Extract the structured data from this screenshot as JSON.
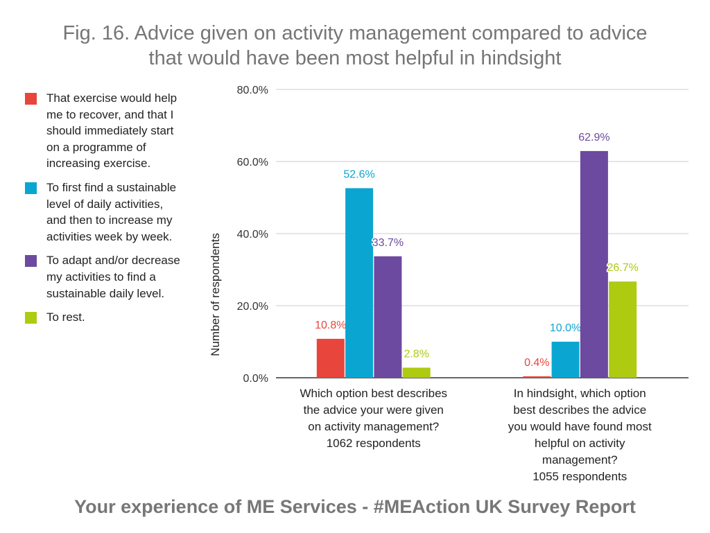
{
  "title": {
    "line1": "Fig. 16. Advice given on activity management compared to advice",
    "line2": "that would have been most helpful in hindsight"
  },
  "legend": [
    {
      "label": "That exercise would help me to recover, and that I should immediately start on a programme of increasing exercise.",
      "color": "#e8453c"
    },
    {
      "label": "To first find a sustainable level of daily activities, and then to increase my activities week by week.",
      "color": "#0aa6d1"
    },
    {
      "label": "To adapt and/or decrease my activities to find a sustainable daily level.",
      "color": "#6c4a9f"
    },
    {
      "label": "To rest.",
      "color": "#aecb12"
    }
  ],
  "chart_data": {
    "type": "bar",
    "categories": [
      [
        "Which option best describes",
        "the advice your were given",
        "on activity management?",
        "1062 respondents"
      ],
      [
        "In hindsight, which option",
        "best describes the advice",
        "you would have found most",
        "helpful on activity",
        "management?",
        "1055 respondents"
      ]
    ],
    "series": [
      {
        "name": "That exercise would help me to recover, and that I should immediately start on a programme of increasing exercise.",
        "color": "#e8453c",
        "values": [
          10.8,
          0.4
        ],
        "labels": [
          "10.8%",
          "0.4%"
        ]
      },
      {
        "name": "To first find a sustainable level of daily activities, and then to increase my activities week by week.",
        "color": "#0aa6d1",
        "values": [
          52.6,
          10.0
        ],
        "labels": [
          "52.6%",
          "10.0%"
        ]
      },
      {
        "name": "To adapt and/or decrease my activities to find a sustainable daily level.",
        "color": "#6c4a9f",
        "values": [
          33.7,
          62.9
        ],
        "labels": [
          "33.7%",
          "62.9%"
        ]
      },
      {
        "name": "To rest.",
        "color": "#aecb12",
        "values": [
          2.8,
          26.7
        ],
        "labels": [
          "2.8%",
          "26.7%"
        ]
      }
    ],
    "ylabel": "Number of respondents",
    "ylim": [
      0,
      80
    ],
    "yticks": [
      "0.0%",
      "20.0%",
      "40.0%",
      "60.0%",
      "80.0%"
    ],
    "ytick_values": [
      0,
      20,
      40,
      60,
      80
    ],
    "grid": true,
    "legend_position": "left"
  },
  "footer": "Your experience of ME Services - #MEAction UK Survey Report"
}
